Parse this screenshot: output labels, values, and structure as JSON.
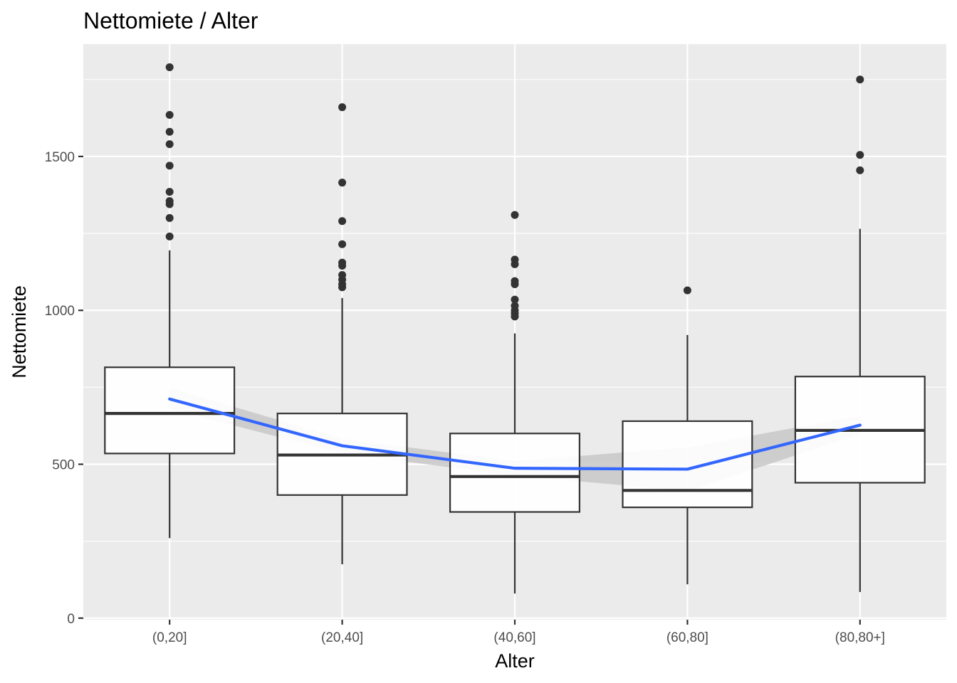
{
  "chart_data": {
    "type": "boxplot",
    "title": "Nettomiete / Alter",
    "xlabel": "Alter",
    "ylabel": "Nettomiete",
    "categories": [
      "(0,20]",
      "(20,40]",
      "(40,60]",
      "(60,80]",
      "(80,80+]"
    ],
    "y_ticks": [
      0,
      500,
      1000,
      1500
    ],
    "y_tick_labels": [
      "0",
      "500",
      "1000",
      "1500"
    ],
    "ylim": [
      -5,
      1865
    ],
    "grid": true,
    "boxes": [
      {
        "category": "(0,20]",
        "whisker_low": 260,
        "q1": 535,
        "median": 665,
        "q3": 815,
        "whisker_high": 1195,
        "outliers": [
          1790,
          1635,
          1580,
          1540,
          1470,
          1385,
          1355,
          1345,
          1300,
          1240
        ]
      },
      {
        "category": "(20,40]",
        "whisker_low": 175,
        "q1": 400,
        "median": 530,
        "q3": 665,
        "whisker_high": 1040,
        "outliers": [
          1660,
          1415,
          1290,
          1215,
          1155,
          1145,
          1115,
          1100,
          1085,
          1075
        ]
      },
      {
        "category": "(40,60]",
        "whisker_low": 80,
        "q1": 345,
        "median": 460,
        "q3": 600,
        "whisker_high": 925,
        "outliers": [
          1310,
          1165,
          1150,
          1095,
          1085,
          1035,
          1015,
          1000,
          990,
          980
        ]
      },
      {
        "category": "(60,80]",
        "whisker_low": 110,
        "q1": 360,
        "median": 415,
        "q3": 640,
        "whisker_high": 920,
        "outliers": [
          1065
        ]
      },
      {
        "category": "(80,80+]",
        "whisker_low": 85,
        "q1": 440,
        "median": 610,
        "q3": 785,
        "whisker_high": 1265,
        "outliers": [
          1750,
          1505,
          1455
        ]
      }
    ],
    "trend": {
      "color": "#3366ff",
      "values": [
        712,
        560,
        487,
        484,
        627
      ],
      "ci_low": [
        680,
        535,
        463,
        413,
        598
      ],
      "ci_high": [
        748,
        583,
        510,
        555,
        657
      ],
      "ci_color": "#c8c8c8"
    },
    "colors": {
      "panel_background": "#ebebeb",
      "grid": "#ffffff",
      "box_fill": "#ffffff",
      "box_line": "#333333",
      "tick_text": "#4d4d4d"
    }
  }
}
